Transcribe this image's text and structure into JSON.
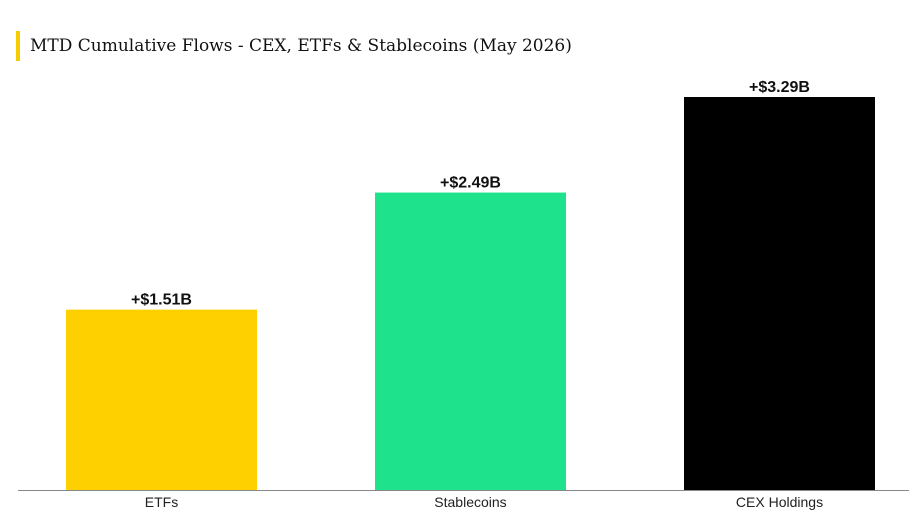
{
  "colors": {
    "accent": "#F5CC00",
    "axis": "#888888"
  },
  "chart_data": {
    "type": "bar",
    "title": "MTD Cumulative Flows - CEX, ETFs & Stablecoins (May 2026)",
    "categories": [
      "ETFs",
      "Stablecoins",
      "CEX Holdings"
    ],
    "values": [
      1.51,
      2.49,
      3.29
    ],
    "value_labels": [
      "+$1.51B",
      "+$2.49B",
      "+$3.29B"
    ],
    "bar_colors": [
      "#FFD000",
      "#1EE38C",
      "#000000"
    ],
    "unit": "B",
    "ylim": [
      0,
      3.29
    ],
    "grid": false,
    "legend": "none",
    "xlabel": "",
    "ylabel": ""
  }
}
